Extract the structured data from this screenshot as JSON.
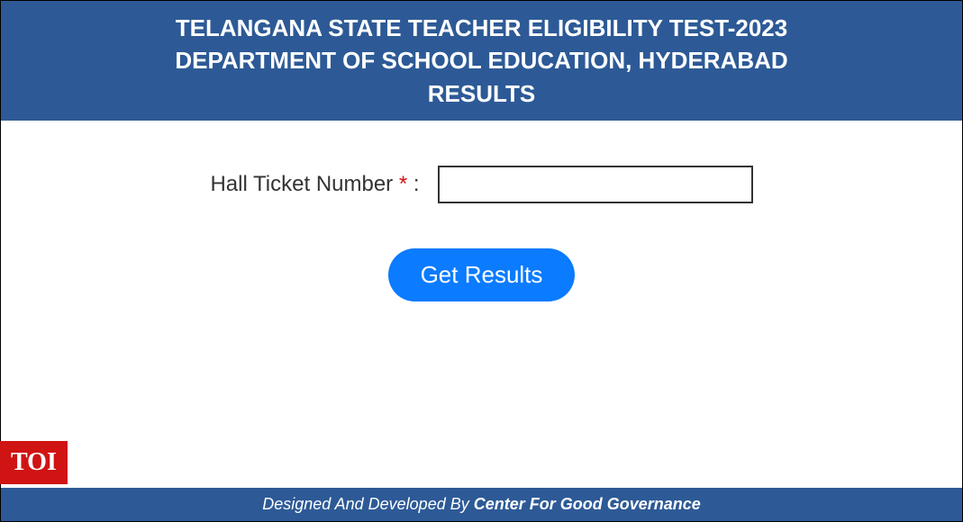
{
  "header": {
    "line1": "TELANGANA STATE TEACHER ELIGIBILITY TEST-2023",
    "line2": "DEPARTMENT OF SCHOOL EDUCATION, HYDERABAD",
    "line3": "RESULTS"
  },
  "form": {
    "label_text": "Hall Ticket Number ",
    "asterisk": "*",
    "label_suffix": " :",
    "input_value": "",
    "button_label": "Get Results"
  },
  "footer": {
    "prefix": "Designed And Developed By ",
    "bold_text": "Center For Good Governance"
  },
  "badge": {
    "text": "TOI"
  },
  "colors": {
    "header_bg": "#2d5a96",
    "header_text": "#ffffff",
    "button_bg": "#0b7bff",
    "button_text": "#ffffff",
    "asterisk_color": "#d01313",
    "badge_bg": "#d01313",
    "badge_text": "#ffffff",
    "input_border": "#333333",
    "body_bg": "#ffffff"
  }
}
